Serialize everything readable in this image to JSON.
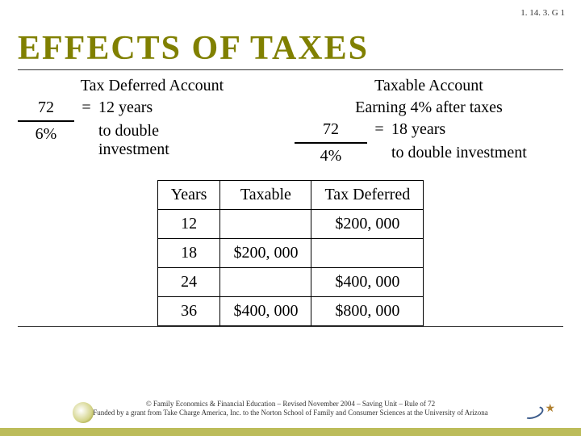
{
  "page_code": "1. 14. 3. G 1",
  "title": "Effects of taxes",
  "left": {
    "heading": "Tax Deferred Account",
    "numerator": "72",
    "denominator": "6%",
    "equals": "=",
    "result_line1": "12 years",
    "result_line2": "to double",
    "result_line3": "investment"
  },
  "right": {
    "heading_line1": "Taxable Account",
    "heading_line2": "Earning 4% after taxes",
    "numerator": "72",
    "denominator": "4%",
    "equals": "=",
    "result_line1": "18 years",
    "result_line2": "to double investment"
  },
  "table": {
    "headers": [
      "Years",
      "Taxable",
      "Tax Deferred"
    ],
    "rows": [
      [
        "12",
        "",
        "$200, 000"
      ],
      [
        "18",
        "$200, 000",
        ""
      ],
      [
        "24",
        "",
        "$400, 000"
      ],
      [
        "36",
        "$400, 000",
        "$800, 000"
      ]
    ],
    "border_color": "#000000",
    "cell_fontsize": 20
  },
  "footer": {
    "line1": "© Family Economics & Financial Education – Revised November 2004 – Saving Unit – Rule of 72",
    "line2": "Funded by a grant from Take Charge America, Inc. to the Norton School of Family and Consumer Sciences at the University of Arizona"
  },
  "colors": {
    "title": "#808000",
    "accent_bar": "#bcbc5a",
    "rule": "#333333",
    "background": "#ffffff"
  }
}
